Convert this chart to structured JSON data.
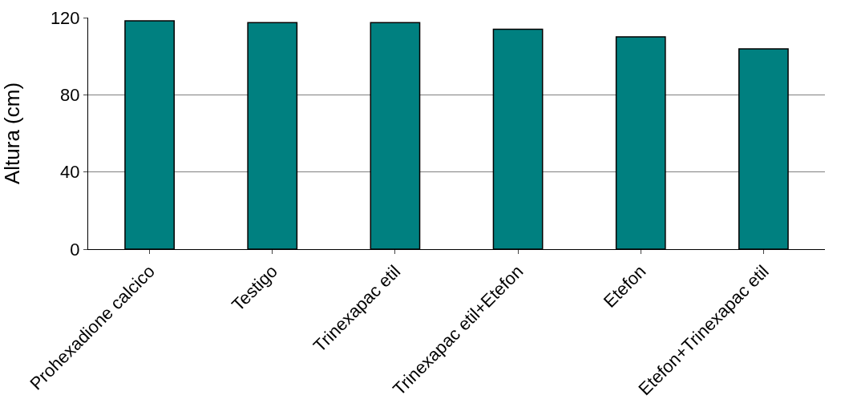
{
  "chart_data": {
    "type": "bar",
    "ylabel": "Altura (cm)",
    "categories": [
      "Prohexadione calcico",
      "Testigo",
      "Trinexapac etil",
      "Trinexapac etil+Etefon",
      "Etefon",
      "Etefon+Trinexapac etil"
    ],
    "values": [
      118.3,
      117.4,
      117.4,
      114,
      110,
      103.8
    ],
    "color": "#008080",
    "ylim": [
      0,
      120
    ],
    "yticks": [
      0,
      40,
      80,
      120
    ],
    "grid": "y"
  }
}
